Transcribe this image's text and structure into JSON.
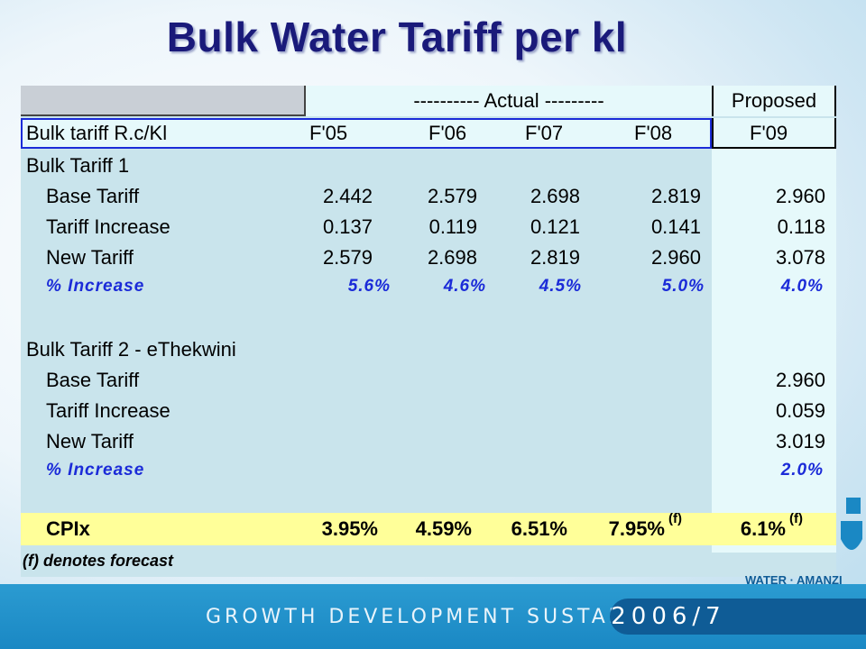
{
  "title": "Bulk Water Tariff per kl",
  "header": {
    "actual_label": "---------- Actual ---------",
    "proposed_label": "Proposed",
    "row_label": "Bulk tariff R.c/Kl",
    "years": [
      "F'05",
      "F'06",
      "F'07",
      "F'08",
      "F'09"
    ]
  },
  "section1": {
    "title": "Bulk Tariff 1",
    "rows": [
      {
        "label": "Base Tariff",
        "values": [
          "2.442",
          "2.579",
          "2.698",
          "2.819",
          "2.960"
        ]
      },
      {
        "label": "Tariff Increase",
        "values": [
          "0.137",
          "0.119",
          "0.121",
          "0.141",
          "0.118"
        ]
      },
      {
        "label": "New Tariff",
        "values": [
          "2.579",
          "2.698",
          "2.819",
          "2.960",
          "3.078"
        ]
      },
      {
        "label": "% Increase",
        "values": [
          "5.6%",
          "4.6%",
          "4.5%",
          "5.0%",
          "4.0%"
        ]
      }
    ]
  },
  "section2": {
    "title": "Bulk Tariff 2 - eThekwini",
    "rows": [
      {
        "label": "Base Tariff",
        "values": [
          "",
          "",
          "",
          "",
          "2.960"
        ]
      },
      {
        "label": "Tariff Increase",
        "values": [
          "",
          "",
          "",
          "",
          "0.059"
        ]
      },
      {
        "label": "New Tariff",
        "values": [
          "",
          "",
          "",
          "",
          "3.019"
        ]
      },
      {
        "label": "% Increase",
        "values": [
          "",
          "",
          "",
          "",
          "2.0%"
        ]
      }
    ]
  },
  "cpix": {
    "label": "CPIx",
    "values": [
      "3.95%",
      "4.59%",
      "6.51%",
      "7.95%",
      "6.1%"
    ],
    "marker": "(f)"
  },
  "footnote": "(f) denotes forecast",
  "footer": {
    "tagline": "GROWTH DEVELOPMENT SUSTAINABILITY",
    "year": "2006/7",
    "logo_text": "WATER · AMANZI"
  },
  "colors": {
    "title": "#1a1a7a",
    "table_bg": "#c9e4ec",
    "proposed_bg": "#e6f9fb",
    "highlight_row": "#ffff99",
    "percent_text": "#1b2bd8",
    "footer_band": "#1a88c4"
  }
}
